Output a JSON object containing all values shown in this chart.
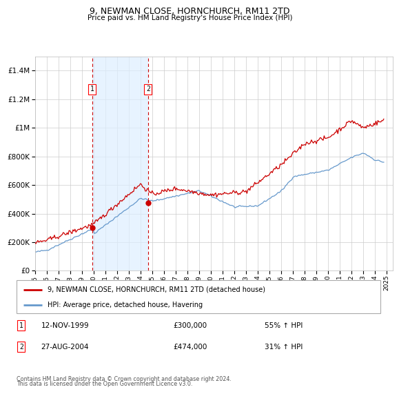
{
  "title": "9, NEWMAN CLOSE, HORNCHURCH, RM11 2TD",
  "subtitle": "Price paid vs. HM Land Registry's House Price Index (HPI)",
  "legend_line1": "9, NEWMAN CLOSE, HORNCHURCH, RM11 2TD (detached house)",
  "legend_line2": "HPI: Average price, detached house, Havering",
  "footnote1": "Contains HM Land Registry data © Crown copyright and database right 2024.",
  "footnote2": "This data is licensed under the Open Government Licence v3.0.",
  "sale1_date": "12-NOV-1999",
  "sale1_price": 300000,
  "sale1_hpi": "55% ↑ HPI",
  "sale1_year": 1999.87,
  "sale2_date": "27-AUG-2004",
  "sale2_price": 474000,
  "sale2_hpi": "31% ↑ HPI",
  "sale2_year": 2004.65,
  "hpi_color": "#6699cc",
  "price_color": "#cc0000",
  "shade_color": "#ddeeff",
  "background_color": "#ffffff",
  "grid_color": "#cccccc",
  "ylim": [
    0,
    1500000
  ],
  "xlim_start": 1995.0,
  "xlim_end": 2025.5
}
